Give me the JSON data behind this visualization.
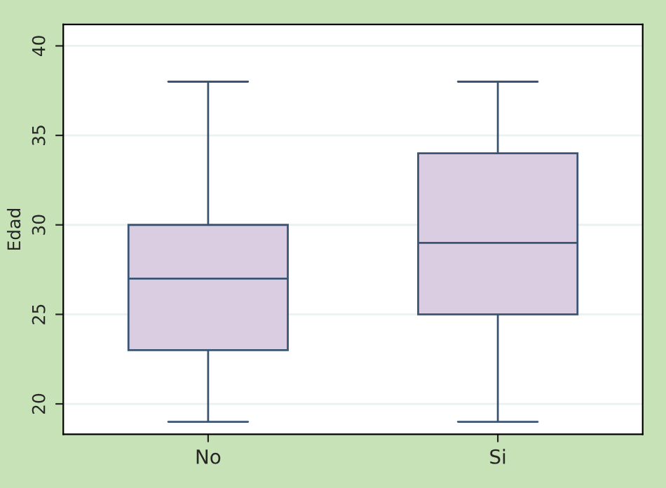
{
  "chart_data": {
    "type": "box",
    "ylabel": "Edad",
    "categories": [
      "No",
      "Si"
    ],
    "boxes": [
      {
        "low": 19,
        "q1": 23,
        "median": 27,
        "q3": 30,
        "high": 38
      },
      {
        "low": 19,
        "q1": 25,
        "median": 29,
        "q3": 34,
        "high": 38
      }
    ],
    "color": "#dacde2",
    "ylim": [
      18.3,
      41.2
    ],
    "yticks": [
      20,
      25,
      30,
      35,
      40
    ],
    "grid": "y"
  }
}
